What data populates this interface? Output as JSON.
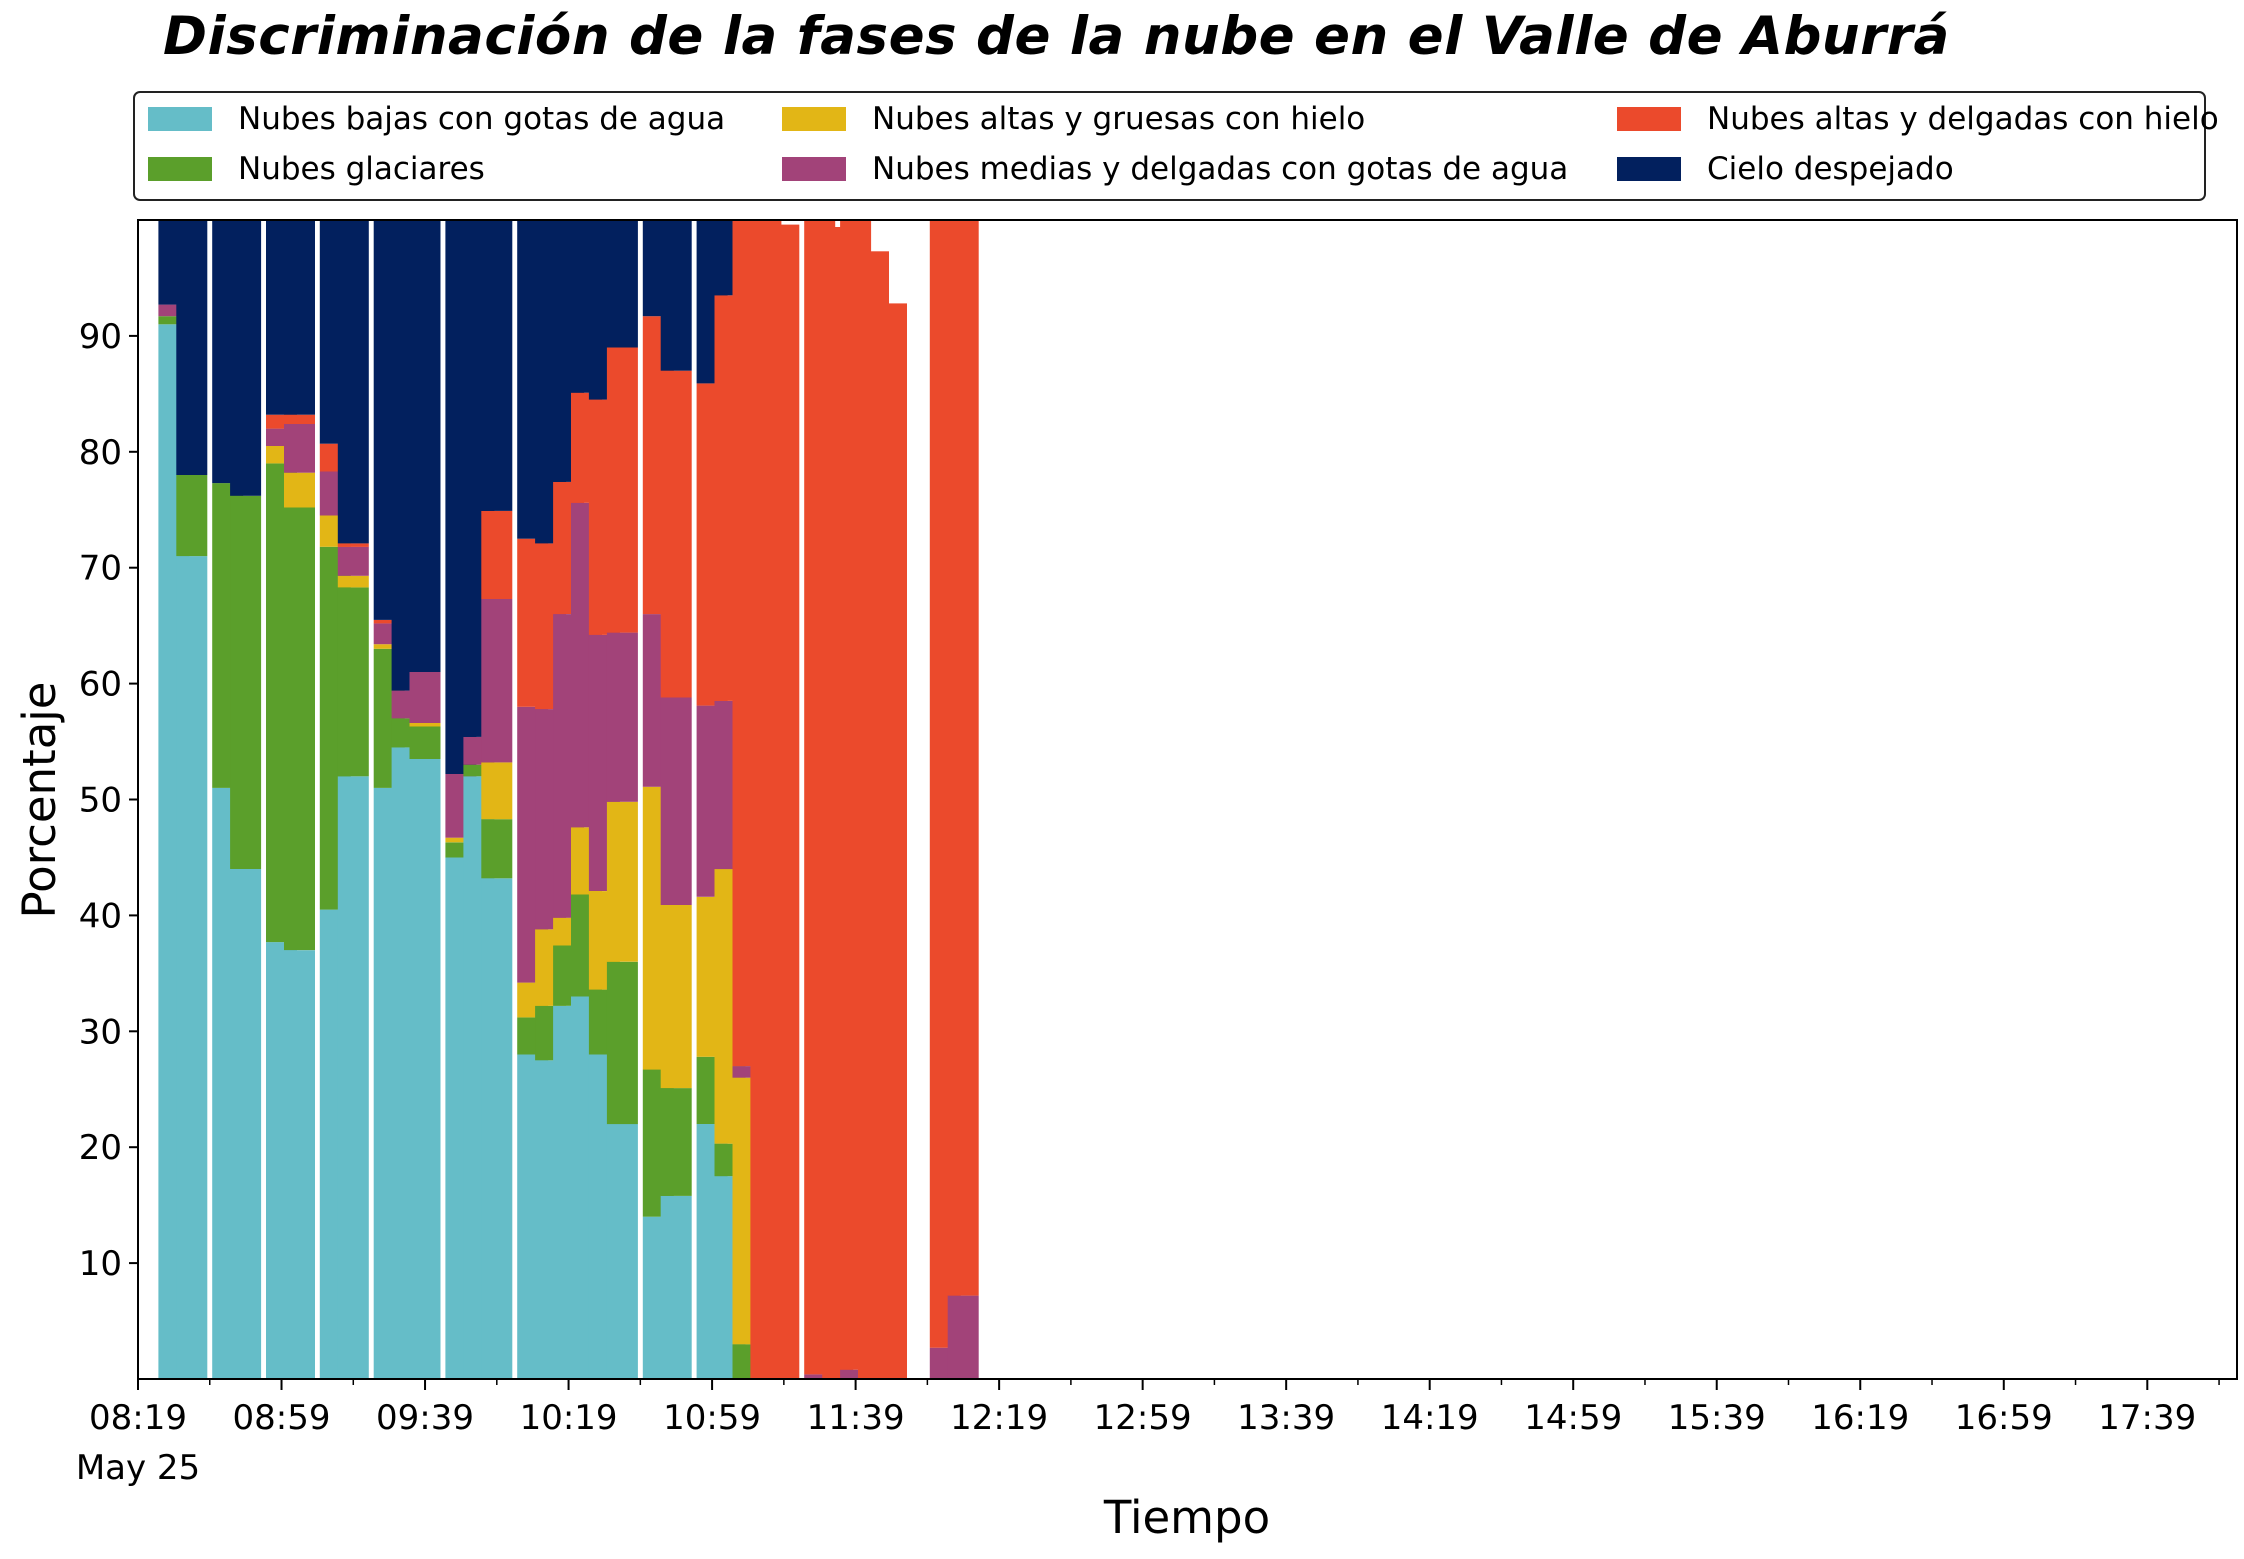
{
  "chart_data": {
    "type": "bar",
    "stacked": true,
    "title": "Discriminación de la fases de la nube en el Valle de Aburrá",
    "xlabel": "Tiempo",
    "ylabel": "Porcentaje",
    "ylim": [
      0,
      100
    ],
    "yticks": [
      10,
      20,
      30,
      40,
      50,
      60,
      70,
      80,
      90
    ],
    "xlim": [
      "08:19",
      "18:04"
    ],
    "xticks": [
      "08:19",
      "08:59",
      "09:39",
      "10:19",
      "10:59",
      "11:39",
      "12:19",
      "12:59",
      "13:39",
      "14:19",
      "14:59",
      "15:39",
      "16:19",
      "16:59",
      "17:39"
    ],
    "x_date_label": "May 25",
    "minor_tick_interval_minutes": 20,
    "grid": false,
    "legend_position": "top",
    "x": [
      "08:29",
      "08:34",
      "08:44",
      "08:49",
      "08:59",
      "09:04",
      "09:14",
      "09:19",
      "09:29",
      "09:34",
      "09:39",
      "09:49",
      "09:54",
      "09:59",
      "10:09",
      "10:14",
      "10:19",
      "10:24",
      "10:29",
      "10:34",
      "10:44",
      "10:49",
      "10:59",
      "11:04",
      "11:09",
      "11:14",
      "11:19",
      "11:29",
      "11:34",
      "11:39",
      "11:44",
      "11:49",
      "11:54",
      "11:59",
      "12:04",
      "12:09"
    ],
    "series": [
      {
        "name": "Nubes bajas con gotas de agua",
        "color": "#65BDC8",
        "values": [
          91.0,
          71.0,
          51.0,
          44.0,
          37.7,
          37.0,
          40.5,
          52.0,
          51.0,
          54.5,
          53.5,
          45.0,
          52.0,
          43.2,
          28.0,
          27.5,
          32.2,
          33.0,
          28.0,
          22.0,
          14.0,
          15.8,
          22.0,
          17.5,
          0,
          0,
          0,
          0,
          0,
          0,
          0,
          0,
          0,
          0,
          0,
          0
        ]
      },
      {
        "name": "Nubes glaciares",
        "color": "#5B9F2B",
        "values": [
          0.7,
          7.0,
          26.3,
          32.2,
          41.3,
          38.2,
          31.3,
          16.3,
          12.0,
          2.5,
          2.8,
          1.3,
          1.0,
          5.1,
          3.2,
          4.7,
          5.2,
          8.8,
          5.6,
          14.0,
          12.7,
          9.3,
          5.8,
          2.8,
          3.0,
          0,
          0,
          0,
          0,
          0,
          0,
          0,
          0,
          0,
          0,
          0
        ]
      },
      {
        "name": "Nubes altas y gruesas con hielo",
        "color": "#E2B616",
        "values": [
          0,
          0,
          0,
          0,
          1.5,
          3.0,
          2.7,
          1.0,
          0.4,
          0,
          0.3,
          0.4,
          0,
          4.9,
          3.0,
          6.6,
          2.4,
          5.8,
          8.5,
          13.8,
          24.4,
          15.8,
          13.8,
          23.7,
          23.0,
          0,
          0,
          0,
          0,
          0,
          0,
          0,
          0,
          0,
          0,
          0
        ]
      },
      {
        "name": "Nubes medias y delgadas con gotas de agua",
        "color": "#A24379",
        "values": [
          1.0,
          0,
          0,
          0,
          1.5,
          4.2,
          3.8,
          2.5,
          1.8,
          2.4,
          4.4,
          5.5,
          2.4,
          14.1,
          23.8,
          19.0,
          26.2,
          28.0,
          22.1,
          14.6,
          14.9,
          17.9,
          16.5,
          14.5,
          1.0,
          0,
          0,
          0.4,
          0,
          0.8,
          0,
          0,
          0,
          0,
          2.7,
          7.2
        ]
      },
      {
        "name": "Nubes altas y delgadas con hielo",
        "color": "#EB4A2C",
        "values": [
          0,
          0,
          0,
          0,
          1.2,
          0.8,
          2.4,
          0.3,
          0.3,
          0,
          0,
          0,
          0,
          7.6,
          14.5,
          14.3,
          11.4,
          9.5,
          20.3,
          24.6,
          25.7,
          28.2,
          27.8,
          35.0,
          73.0,
          100,
          99.6,
          99.6,
          99.4,
          99.2,
          97.3,
          92.8,
          0,
          0,
          97.3,
          92.8
        ]
      },
      {
        "name": "Cielo despejado",
        "color": "#02205E",
        "values": [
          7.3,
          22.0,
          22.7,
          23.8,
          16.8,
          16.8,
          19.3,
          27.9,
          34.5,
          40.6,
          39.0,
          47.8,
          44.6,
          25.1,
          27.5,
          27.9,
          22.6,
          14.9,
          15.5,
          11.0,
          8.3,
          13.0,
          14.1,
          6.8,
          0,
          0,
          0,
          0,
          0,
          0,
          0,
          0,
          0,
          0,
          0,
          0
        ]
      }
    ]
  }
}
